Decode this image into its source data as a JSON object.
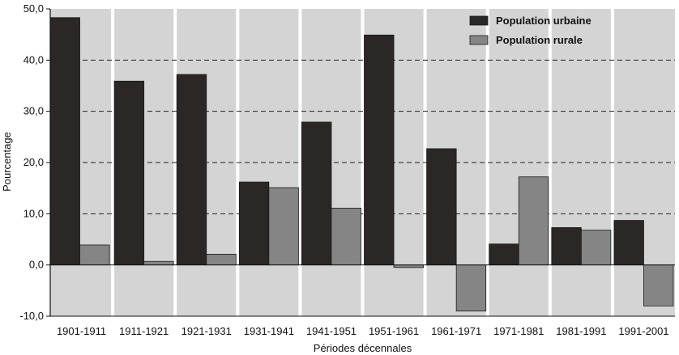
{
  "chart_data": {
    "type": "bar",
    "categories": [
      "1901-1911",
      "1911-1921",
      "1921-1931",
      "1931-1941",
      "1941-1951",
      "1951-1961",
      "1961-1971",
      "1971-1981",
      "1981-1991",
      "1991-2001"
    ],
    "series": [
      {
        "name": "Population urbaine",
        "color": "#2b2727",
        "values": [
          48.3,
          35.9,
          37.2,
          16.2,
          27.9,
          44.9,
          22.7,
          4.1,
          7.3,
          8.7
        ]
      },
      {
        "name": "Population rurale",
        "color": "#858585",
        "values": [
          3.9,
          0.7,
          2.1,
          15.1,
          11.1,
          -0.5,
          -9.0,
          17.2,
          6.8,
          -8.0
        ]
      }
    ],
    "ylim": [
      -10,
      50
    ],
    "yticks": [
      -10,
      0,
      10,
      20,
      30,
      40,
      50
    ],
    "ytick_labels": [
      "-10,0",
      "0,0",
      "10,0",
      "20,0",
      "30,0",
      "40,0",
      "50,0"
    ],
    "xlabel": "Périodes décennales",
    "ylabel": "Pourcentage",
    "grid": "horizontal dashed",
    "legend_position": "top-right",
    "plot_background": "#d4d4d4"
  }
}
